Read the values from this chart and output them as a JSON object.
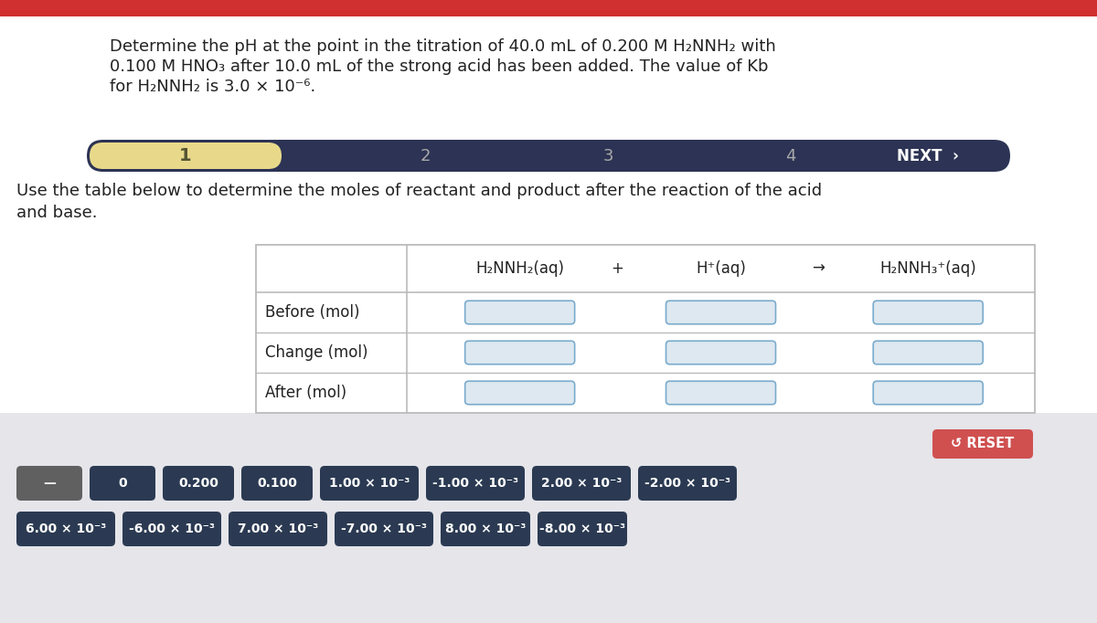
{
  "top_bar_color": "#d03030",
  "bg_white": "#ffffff",
  "bg_gray": "#e5e5ea",
  "nav_bg": "#2c3354",
  "nav_highlight": "#e8d98a",
  "nav_highlight_text": "#555533",
  "nav_gray_text": "#aaaaaa",
  "nav_white_text": "#ffffff",
  "subtitle_color": "#222222",
  "table_border_color": "#bbbbbb",
  "input_box_fill": "#dde8f0",
  "input_box_border": "#7aabcc",
  "reset_color": "#d05050",
  "reset_text": "↺ RESET",
  "btn_dark_color": "#2b3a52",
  "btn_gray_color": "#606060",
  "title_line1": "Determine the pH at the point in the titration of 40.0 mL of 0.200 M H₂NNH₂ with",
  "title_line2": "0.100 M HNO₃ after 10.0 mL of the strong acid has been added. The value of Kb",
  "title_line3": "for H₂NNH₂ is 3.0 × 10⁻⁶.",
  "subtitle_line1": "Use the table below to determine the moles of reactant and product after the reaction of the acid",
  "subtitle_line2": "and base.",
  "table_rows": [
    "Before (mol)",
    "Change (mol)",
    "After (mol)"
  ],
  "table_header_col1": "H₂NNH₂(aq)",
  "table_header_plus": "+",
  "table_header_col2": "H⁺(aq)",
  "table_header_arrow": "→",
  "table_header_col3": "H₂NNH₃⁺(aq)",
  "button_row1": [
    "—",
    "0",
    "0.200",
    "0.100",
    "1.00 × 10⁻³",
    "-1.00 × 10⁻³",
    "2.00 × 10⁻³",
    "-2.00 × 10⁻³"
  ],
  "button_row2": [
    "6.00 × 10⁻³",
    "-6.00 × 10⁻³",
    "7.00 × 10⁻³",
    "-7.00 × 10⁻³",
    "8.00 × 10⁻³",
    "-8.00 × 10⁻³"
  ],
  "nav_items": [
    "1",
    "2",
    "3",
    "4"
  ],
  "fig_width": 12.0,
  "fig_height": 6.82
}
